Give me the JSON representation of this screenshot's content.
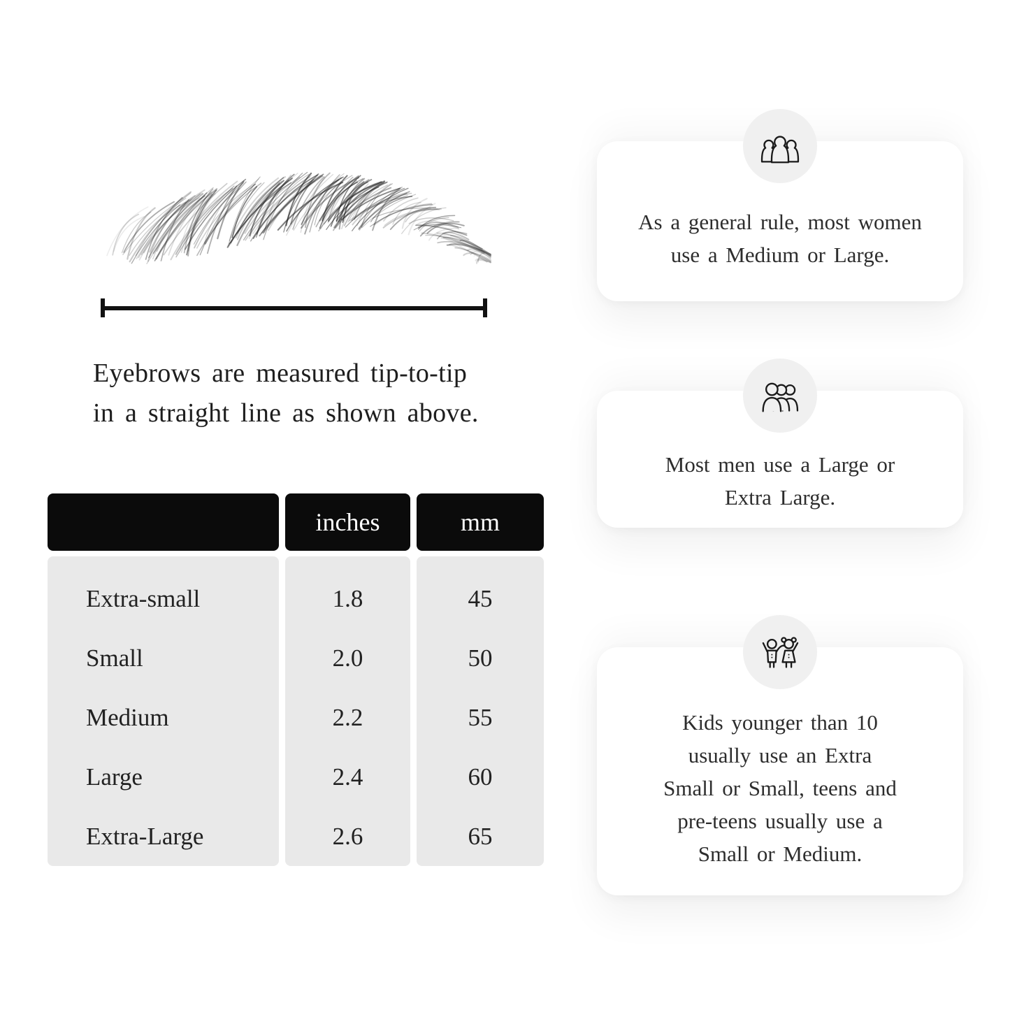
{
  "figure": {
    "caption_lines": [
      "Eyebrows are measured tip-to-tip",
      "in a straight line as shown above."
    ]
  },
  "size_table": {
    "columns": [
      "",
      "inches",
      "mm"
    ],
    "rows": [
      {
        "label": "Extra-small",
        "inches": "1.8",
        "mm": "45"
      },
      {
        "label": "Small",
        "inches": "2.0",
        "mm": "50"
      },
      {
        "label": "Medium",
        "inches": "2.2",
        "mm": "55"
      },
      {
        "label": "Large",
        "inches": "2.4",
        "mm": "60"
      },
      {
        "label": "Extra-Large",
        "inches": "2.6",
        "mm": "65"
      }
    ]
  },
  "cards": [
    {
      "icon": "women-group-icon",
      "lines": [
        "As a general rule, most women",
        "use a Medium or Large."
      ]
    },
    {
      "icon": "men-group-icon",
      "lines": [
        "Most men use a Large or",
        "Extra Large."
      ]
    },
    {
      "icon": "kids-icon",
      "lines": [
        "Kids younger than 10",
        "usually use an Extra",
        "Small or Small, teens and",
        "pre-teens usually use a",
        "Small or Medium."
      ]
    }
  ],
  "colors": {
    "page_bg": "#ffffff",
    "header_bg": "#0b0b0b",
    "header_text": "#ffffff",
    "table_body_bg": "#e9e9e9",
    "circle_bg": "#f0f0f0",
    "card_bg": "#ffffff",
    "card_text": "#2d2d2d",
    "text_dark": "#1e1e1e",
    "line_color": "#111111"
  }
}
